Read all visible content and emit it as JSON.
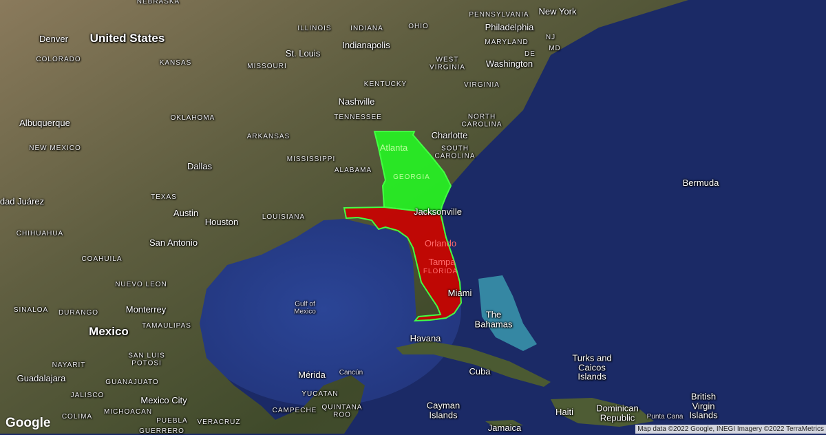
{
  "map": {
    "type": "satellite",
    "highlighted_regions": [
      {
        "name": "GEORGIA",
        "fill": "#22ff22",
        "stroke": "#44ff44"
      },
      {
        "name": "FLORIDA",
        "fill": "#cc0000",
        "stroke": "#44ff44"
      }
    ],
    "colors": {
      "ocean": "#1b2a66",
      "gulf": "#2a4494",
      "land": "#5b5a3c"
    },
    "labels": [
      "NEBRASKA",
      "United States",
      "Denver",
      "COLORADO",
      "KANSAS",
      "ILLINOIS",
      "INDIANA",
      "OHIO",
      "PENNSYLVANIA",
      "New York",
      "Philadelphia",
      "NJ",
      "MARYLAND",
      "DE",
      "St. Louis",
      "MISSOURI",
      "Indianapolis",
      "WEST\nVIRGINIA",
      "Washington",
      "KENTUCKY",
      "VIRGINIA",
      "Albuquerque",
      "OKLAHOMA",
      "Nashville",
      "TENNESSEE",
      "NORTH\nCAROLINA",
      "Charlotte",
      "ARKANSAS",
      "SOUTH\nCAROLINA",
      "Atlanta",
      "NEW MEXICO",
      "MISSISSIPPI",
      "ALABAMA",
      "Dallas",
      "GEORGIA",
      "Bermuda",
      "TEXAS",
      "dad Juárez",
      "Austin",
      "Jacksonville",
      "Houston",
      "LOUISIANA",
      "CHIHUAHUA",
      "San Antonio",
      "Orlando",
      "COAHUILA",
      "Tampa",
      "FLORIDA",
      "NUEVO LEON",
      "Miami",
      "Gulf of\nMexico",
      "SINALOA",
      "DURANGO",
      "Monterrey",
      "The\nBahamas",
      "TAMAULIPAS",
      "Mexico",
      "Havana",
      "Turks and\nCaicos\nIslands",
      "NAYARIT",
      "SAN LUIS\nPOTOSI",
      "Guadalajara",
      "GUANAJUATO",
      "Mérida",
      "Cancún",
      "Cuba",
      "JALISCO",
      "YUCATAN",
      "Mexico City",
      "Cayman\nIslands",
      "British\nVirgin\nIslands",
      "MICHOACAN",
      "COLIMA",
      "PUEBLA",
      "VERACRUZ",
      "CAMPECHE",
      "QUINTANA\nROO",
      "Haiti",
      "Dominican\nRepublic",
      "Punta Cana",
      "Jamaica",
      "GUERRERO",
      "MD"
    ],
    "logo": "Google",
    "attribution": "Map data ©2022 Google, INEGI Imagery ©2022 TerraMetrics"
  }
}
